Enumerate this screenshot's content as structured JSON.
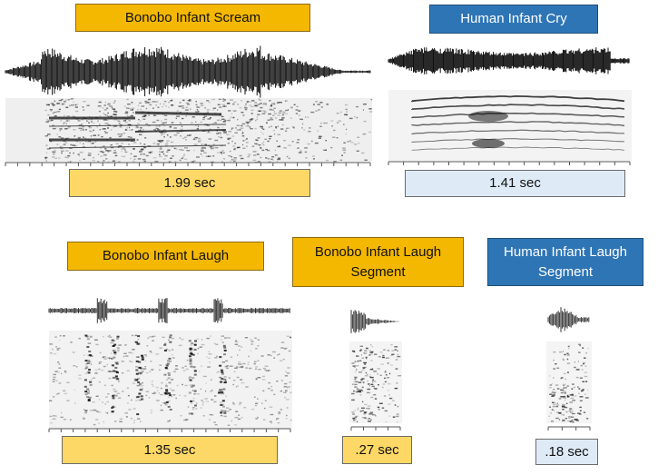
{
  "panels": {
    "bonobo_scream": {
      "label": "Bonobo Infant Scream",
      "duration": "1.99 sec"
    },
    "human_cry": {
      "label": "Human Infant Cry",
      "duration": "1.41 sec"
    },
    "bonobo_laugh": {
      "label": "Bonobo Infant Laugh",
      "duration": "1.35 sec"
    },
    "bonobo_laugh_segment": {
      "label_line1": "Bonobo Infant Laugh",
      "label_line2": "Segment",
      "duration": ".27 sec"
    },
    "human_laugh_segment": {
      "label_line1": "Human Infant Laugh",
      "label_line2": "Segment",
      "duration": ".18 sec"
    }
  },
  "colors": {
    "bonobo_label": "#f5b800",
    "human_label": "#2e75b6",
    "bonobo_duration": "#fdd866",
    "human_duration": "#deebf7"
  }
}
